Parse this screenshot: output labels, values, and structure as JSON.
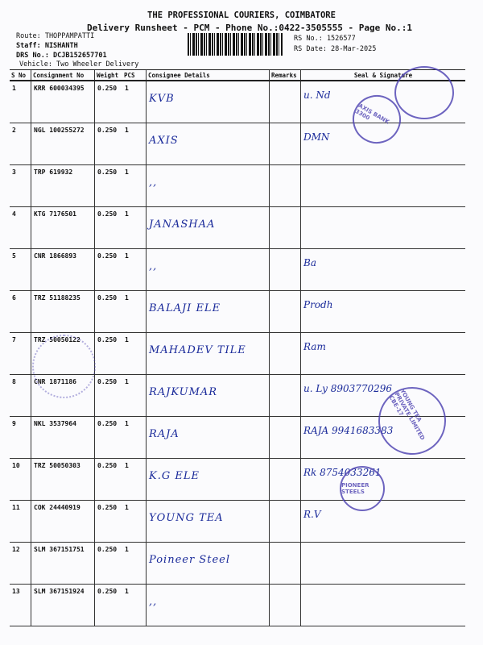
{
  "header": {
    "title": "THE PROFESSIONAL COURIERS, COIMBATORE",
    "subtitle": "Delivery Runsheet - PCM - Phone No.:0422-3505555 - Page No.:1",
    "route": "Route: THOPPAMPATTI",
    "staff": "Staff: NISHANTH",
    "drs": "DRS No.: DCJB152657701",
    "vehicle": "Vehicle: Two Wheeler Delivery",
    "rs_no": "RS No.: 1526577",
    "rs_date": "RS Date: 28-Mar-2025"
  },
  "columns": [
    "S No",
    "Consignment No",
    "Weight",
    "PCS",
    "Consignee Details",
    "Remarks",
    "Seal & Signature"
  ],
  "rows": [
    {
      "sno": "1",
      "consignment": "KRR 600034395",
      "weight": "0.250",
      "pcs": "1",
      "consignee": "KVB",
      "signature": "u. Nd"
    },
    {
      "sno": "2",
      "consignment": "NGL 100255272",
      "weight": "0.250",
      "pcs": "1",
      "consignee": "AXIS",
      "signature": "DMN"
    },
    {
      "sno": "3",
      "consignment": "TRP 619932",
      "weight": "0.250",
      "pcs": "1",
      "consignee": ",,",
      "signature": ""
    },
    {
      "sno": "4",
      "consignment": "KTG 7176501",
      "weight": "0.250",
      "pcs": "1",
      "consignee": "JANASHAA",
      "signature": ""
    },
    {
      "sno": "5",
      "consignment": "CNR 1866893",
      "weight": "0.250",
      "pcs": "1",
      "consignee": ",,",
      "signature": "Ba"
    },
    {
      "sno": "6",
      "consignment": "TRZ 51188235",
      "weight": "0.250",
      "pcs": "1",
      "consignee": "BALAJI ELE",
      "signature": "Prodh"
    },
    {
      "sno": "7",
      "consignment": "TRZ 50050122",
      "weight": "0.250",
      "pcs": "1",
      "consignee": "MAHADEV TILE",
      "signature": "Ram"
    },
    {
      "sno": "8",
      "consignment": "CNR 1871186",
      "weight": "0.250",
      "pcs": "1",
      "consignee": "RAJKUMAR",
      "signature": "u. Ly 8903770296"
    },
    {
      "sno": "9",
      "consignment": "NKL 3537964",
      "weight": "0.250",
      "pcs": "1",
      "consignee": "RAJA",
      "signature": "RAJA 9941683383"
    },
    {
      "sno": "10",
      "consignment": "TRZ 50050303",
      "weight": "0.250",
      "pcs": "1",
      "consignee": "K.G ELE",
      "signature": "Rk 8754033261"
    },
    {
      "sno": "11",
      "consignment": "COK 24440919",
      "weight": "0.250",
      "pcs": "1",
      "consignee": "YOUNG TEA",
      "signature": "R.V"
    },
    {
      "sno": "12",
      "consignment": "SLM 367151751",
      "weight": "0.250",
      "pcs": "1",
      "consignee": "Poineer Steel",
      "signature": ""
    },
    {
      "sno": "13",
      "consignment": "SLM 367151924",
      "weight": "0.250",
      "pcs": "1",
      "consignee": ",,",
      "signature": ""
    }
  ],
  "stamps": {
    "axis": "AXIS BANK 3300",
    "young_tea": "YOUNG TEA PRIVATE LIMITED CBE-17",
    "pioneer": "PIONEER STEELS"
  },
  "ink_color": "#1a2a9a"
}
